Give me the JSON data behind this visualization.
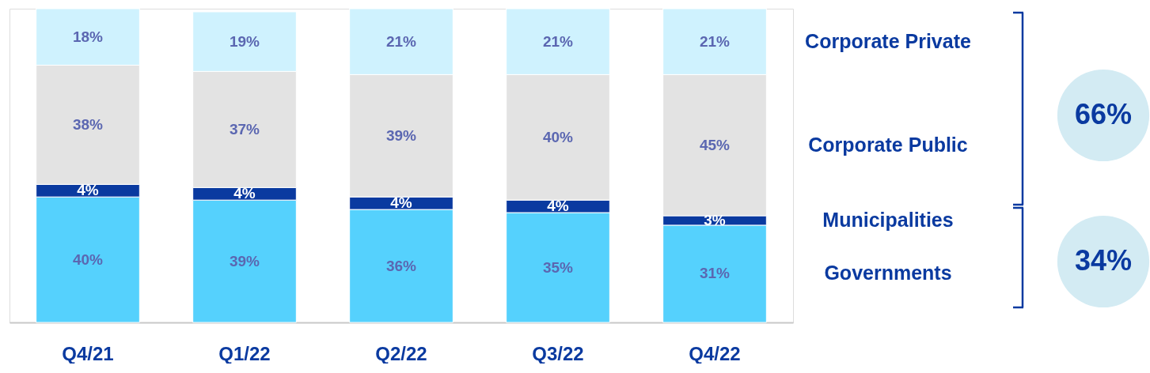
{
  "chart_data": {
    "type": "bar",
    "stacked": true,
    "tick_labels": "x",
    "legend": false,
    "grid": false,
    "categories": [
      "Q4/21",
      "Q1/22",
      "Q2/22",
      "Q3/22",
      "Q4/22"
    ],
    "ylim": [
      0,
      100
    ],
    "series": [
      {
        "name": "Governments",
        "color": "#55d1fd",
        "values": [
          40,
          39,
          36,
          35,
          31
        ],
        "value_labels": [
          "40%",
          "39%",
          "36%",
          "35%",
          "31%"
        ]
      },
      {
        "name": "Municipalities",
        "color": "#0a3aa0",
        "values": [
          4,
          4,
          4,
          4,
          3
        ],
        "value_labels": [
          "4%",
          "4%",
          "4%",
          "4%",
          "3%"
        ]
      },
      {
        "name": "Corporate Public",
        "color": "#e3e3e3",
        "values": [
          38,
          37,
          39,
          40,
          45
        ],
        "value_labels": [
          "38%",
          "37%",
          "39%",
          "40%",
          "45%"
        ]
      },
      {
        "name": "Corporate Private",
        "color": "#cff2fe",
        "values": [
          18,
          19,
          21,
          21,
          21
        ],
        "value_labels": [
          "18%",
          "19%",
          "21%",
          "21%",
          "21%"
        ]
      }
    ],
    "annotations": [
      "66%",
      "34%"
    ]
  }
}
